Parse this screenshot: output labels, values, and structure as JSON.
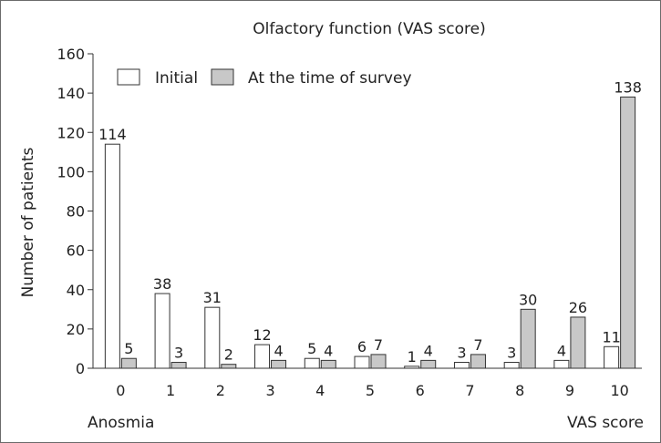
{
  "chart_data": {
    "type": "bar",
    "title": "Olfactory function (VAS score)",
    "ylabel": "Number of patients",
    "xlabel": "",
    "ylim": [
      0,
      160
    ],
    "yticks": [
      0,
      20,
      40,
      60,
      80,
      100,
      120,
      140,
      160
    ],
    "categories": [
      "0",
      "1",
      "2",
      "3",
      "4",
      "5",
      "6",
      "7",
      "8",
      "9",
      "10"
    ],
    "x_annotations": {
      "left": "Anosmia",
      "right": "VAS score"
    },
    "series": [
      {
        "name": "Initial",
        "color": "#ffffff",
        "values": [
          114,
          38,
          31,
          12,
          5,
          6,
          1,
          3,
          3,
          4,
          11
        ]
      },
      {
        "name": "At the time of survey",
        "color": "#c8c8c8",
        "values": [
          5,
          3,
          2,
          4,
          4,
          7,
          4,
          7,
          30,
          26,
          138
        ]
      }
    ],
    "legend_position": "top-left",
    "grid": false
  }
}
